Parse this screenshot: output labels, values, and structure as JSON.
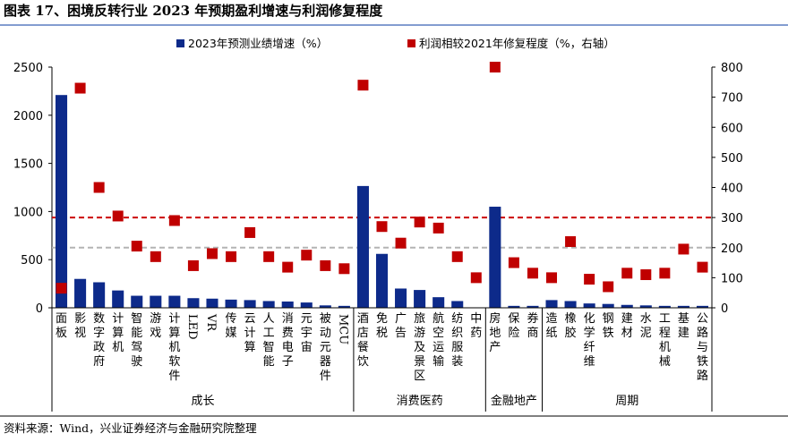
{
  "title": "图表 17、困境反转行业 2023 年预期盈利增速与利润修复程度",
  "source": "资料来源：Wind，兴业证券经济与金融研究院整理",
  "colors": {
    "bar": "#0d2a8a",
    "marker": "#c00000",
    "red_line": "#cc0000",
    "grey_line": "#b4b4b4",
    "title_rule": "#5a7dc0"
  },
  "chart_data": {
    "type": "bar",
    "categories": [
      "面板",
      "影视",
      "数字政府",
      "计算机",
      "智能驾驶",
      "游戏",
      "计算机软件",
      "LED",
      "VR",
      "传媒",
      "云计算",
      "人工智能",
      "消费电子",
      "元宇宙",
      "被动元器件",
      "MCU",
      "酒店餐饮",
      "免税",
      "广告",
      "旅游及景区",
      "航空运输",
      "纺织服装",
      "中药",
      "房地产",
      "保险",
      "券商",
      "造纸",
      "橡胶",
      "化学纤维",
      "钢铁",
      "建材",
      "水泥",
      "工程机械",
      "基建",
      "公路与铁路"
    ],
    "series": [
      {
        "name": "2023年预测业绩增速（%）",
        "axis": "left",
        "type": "bar",
        "values": [
          2210,
          300,
          265,
          180,
          125,
          125,
          125,
          100,
          95,
          85,
          80,
          70,
          65,
          55,
          25,
          20,
          1265,
          560,
          200,
          185,
          110,
          70,
          0,
          1050,
          20,
          20,
          80,
          70,
          45,
          40,
          30,
          25,
          20,
          20,
          20
        ]
      },
      {
        "name": "利润相较2021年修复程度（%，右轴）",
        "axis": "right",
        "type": "scatter",
        "values": [
          65,
          730,
          400,
          305,
          205,
          170,
          290,
          140,
          180,
          170,
          250,
          170,
          135,
          175,
          140,
          130,
          740,
          270,
          215,
          285,
          265,
          170,
          100,
          800,
          150,
          115,
          100,
          220,
          95,
          70,
          115,
          110,
          115,
          195,
          135
        ]
      }
    ],
    "groups": [
      {
        "label": "成长",
        "start": 0,
        "end": 15
      },
      {
        "label": "消费医药",
        "start": 16,
        "end": 22
      },
      {
        "label": "金融地产",
        "start": 23,
        "end": 25
      },
      {
        "label": "周期",
        "start": 26,
        "end": 34
      }
    ],
    "y_left": {
      "min": 0,
      "max": 2500,
      "ticks": [
        0,
        500,
        1000,
        1500,
        2000,
        2500
      ]
    },
    "y_right": {
      "min": 0,
      "max": 800,
      "ticks": [
        0,
        100,
        200,
        300,
        400,
        500,
        600,
        700,
        800
      ]
    },
    "reference_lines": [
      {
        "value": 300,
        "axis": "right",
        "style": "dashed",
        "color": "#cc0000"
      },
      {
        "value": 200,
        "axis": "right",
        "style": "dashed",
        "color": "#b4b4b4"
      }
    ],
    "legend_position": "top"
  }
}
